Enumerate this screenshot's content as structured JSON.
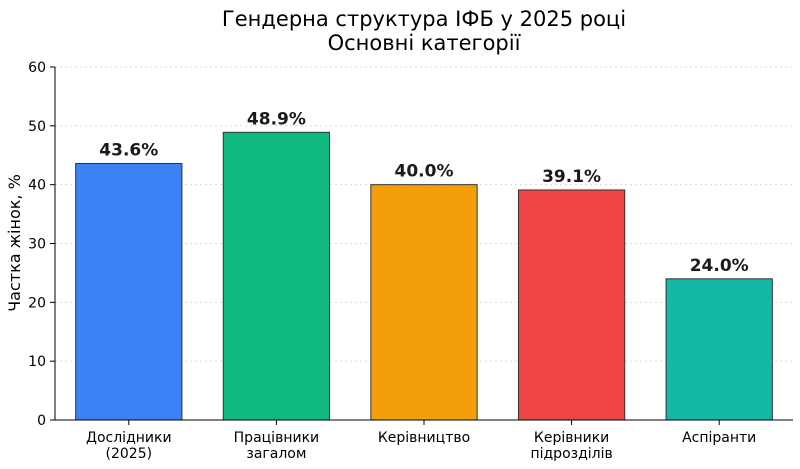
{
  "chart_data": {
    "type": "bar",
    "title": [
      "Гендерна структура ІФБ у 2025 році",
      "Основні категорії"
    ],
    "ylabel": "Частка жінок, %",
    "xlabel": "",
    "ylim": [
      0,
      60
    ],
    "yticks": [
      0,
      10,
      20,
      30,
      40,
      50,
      60
    ],
    "grid": true,
    "categories": [
      [
        "Дослідники",
        "(2025)"
      ],
      [
        "Працівники",
        "загалом"
      ],
      [
        "Керівництво"
      ],
      [
        "Керівники",
        "підрозділів"
      ],
      [
        "Аспіранти"
      ]
    ],
    "values": [
      43.6,
      48.9,
      40.0,
      39.1,
      24.0
    ],
    "value_labels": [
      "43.6%",
      "48.9%",
      "40.0%",
      "39.1%",
      "24.0%"
    ],
    "colors": [
      "#3b82f6",
      "#10b981",
      "#f59e0b",
      "#ef4444",
      "#14b8a6"
    ]
  }
}
